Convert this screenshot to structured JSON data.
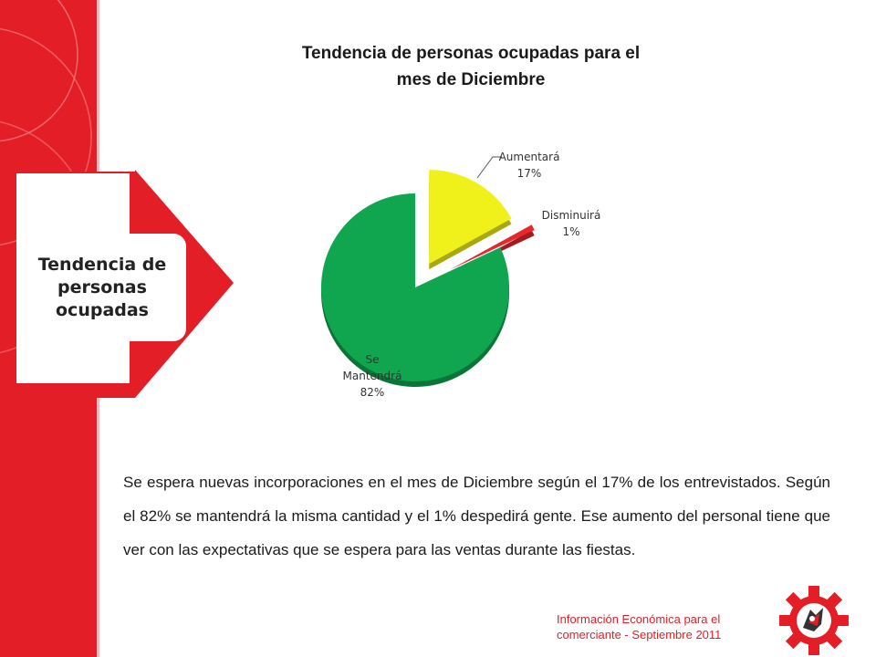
{
  "title_line1": "Tendencia de personas ocupadas para el",
  "title_line2": "mes de Diciembre",
  "side_label": "Tendencia de personas ocupadas",
  "chart_data": {
    "type": "pie",
    "title": "",
    "labels": [
      "Aumentará",
      "Disminuirá",
      "Se Mantendrá"
    ],
    "values": [
      17,
      1,
      82
    ],
    "value_labels": [
      "17%",
      "1%",
      "82%"
    ],
    "label_parts": [
      [
        "Aumentará"
      ],
      [
        "Disminuirá"
      ],
      [
        "Se",
        "Mantendrá"
      ]
    ],
    "colors": [
      "#f0f01a",
      "#e8262b",
      "#0fa64f"
    ],
    "exploded": true,
    "three_d": true
  },
  "body_text": "Se espera nuevas incorporaciones en el mes de Diciembre según el 17% de los entrevistados. Según el 82% se mantendrá la misma cantidad y el 1% despedirá gente. Ese aumento del personal tiene que ver con las expectativas que se espera para las ventas durante las fiestas.",
  "footer": {
    "line1": "Información Económica para el",
    "line2": "comerciante -  Septiembre 2011"
  },
  "colors": {
    "accent_red": "#e41e26"
  }
}
